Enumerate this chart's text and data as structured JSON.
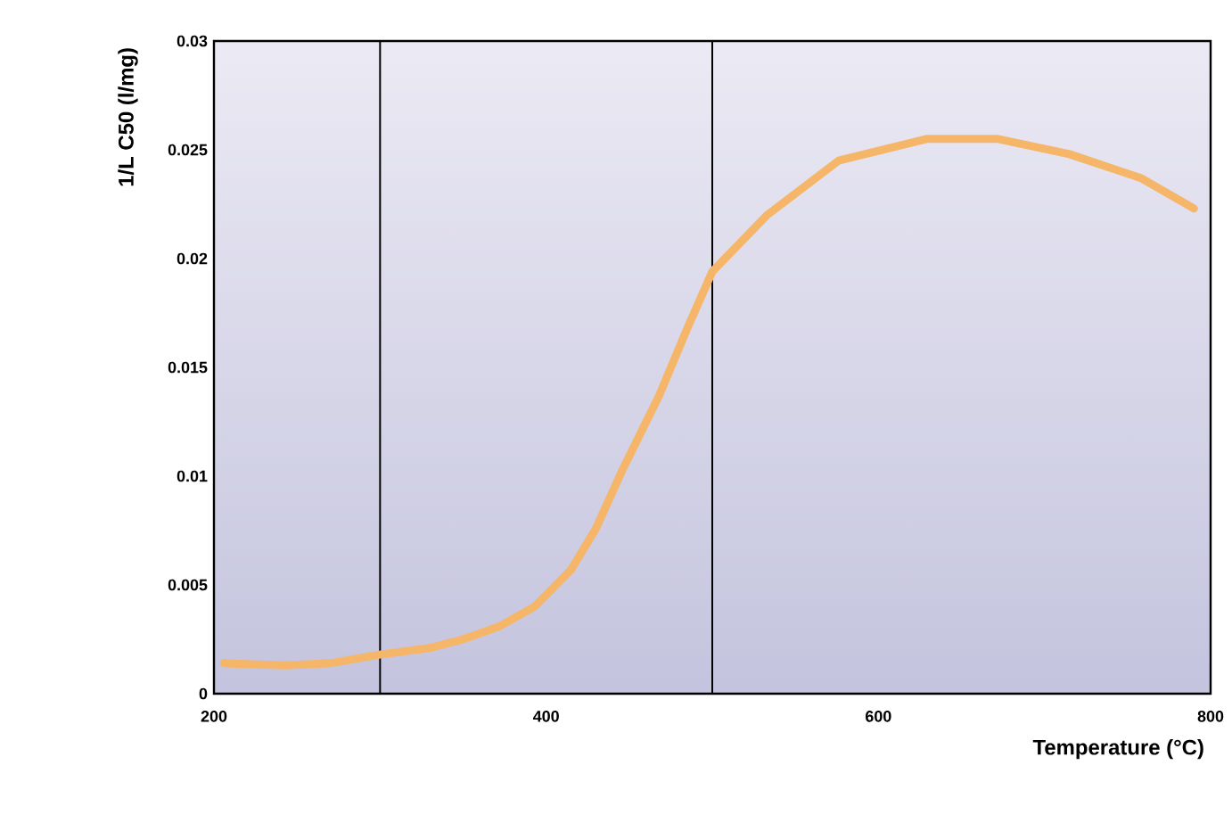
{
  "chart_data": {
    "type": "line",
    "xlabel": "Temperature (°C)",
    "ylabel": "1/L C50 (l/mg)",
    "xlim": [
      200,
      800
    ],
    "ylim": [
      0,
      0.03
    ],
    "xticks": [
      200,
      400,
      600,
      800
    ],
    "yticks": [
      0,
      0.005,
      0.01,
      0.015,
      0.02,
      0.025,
      0.03
    ],
    "series": [
      {
        "color": "#f6b66a",
        "x": [
          206,
          243,
          270,
          300,
          330,
          350,
          372,
          393,
          415,
          430,
          446,
          468,
          485,
          500,
          533,
          576,
          629,
          672,
          715,
          758,
          790
        ],
        "values": [
          0.0014,
          0.0013,
          0.0014,
          0.0018,
          0.0021,
          0.0025,
          0.0031,
          0.004,
          0.0057,
          0.0076,
          0.0103,
          0.0137,
          0.0168,
          0.0194,
          0.022,
          0.0245,
          0.0255,
          0.0255,
          0.0248,
          0.0237,
          0.0223
        ]
      }
    ],
    "ref_lines": [
      {
        "axis": "x",
        "value": 300,
        "color": "#000000"
      },
      {
        "axis": "x",
        "value": 500,
        "color": "#000000"
      }
    ]
  }
}
